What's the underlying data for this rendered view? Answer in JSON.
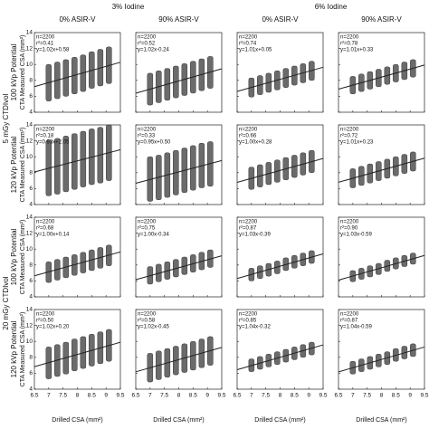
{
  "chart_data": {
    "type": "scatter",
    "group_titles": [
      "3% Iodine",
      "6% Iodine"
    ],
    "column_titles": [
      "0% ASIR-V",
      "90% ASIR-V",
      "0% ASIR-V",
      "90% ASIR-V"
    ],
    "dose_labels": [
      "5 mGy CTDIvol",
      "20 mGy CTDIvol"
    ],
    "row_titles": [
      "100 kVp Potential",
      "120 kVp Potential",
      "100 kVp Potential",
      "120 kVp Potential"
    ],
    "y_label": "CTA Measured CSA (mm²)",
    "x_label": "Drilled CSA (mm²)",
    "xlim": [
      6.5,
      9.5
    ],
    "xticks": [
      6.5,
      7,
      7.5,
      8,
      8.5,
      9,
      9.5
    ],
    "ylim": [
      4,
      14
    ],
    "yticks": [
      4,
      6,
      8,
      10,
      12,
      14
    ],
    "color": "#6b6b6b",
    "fit_color": "#222222",
    "x": [
      7.0,
      7.3,
      7.6,
      7.9,
      8.2,
      8.5,
      8.8,
      9.1
    ],
    "panels": [
      {
        "annotations": [
          "n=2200",
          "r²=0.41",
          "y=1.02x+0.58"
        ],
        "values": [
          7.7,
          8.0,
          8.3,
          8.6,
          8.9,
          9.3,
          9.6,
          9.9
        ],
        "spread": 2.3,
        "fit": [
          1.02,
          0.58
        ]
      },
      {
        "annotations": [
          "n=2200",
          "r²=0.52",
          "y=1.02x-0.24"
        ],
        "values": [
          6.9,
          7.2,
          7.5,
          7.8,
          8.1,
          8.4,
          8.7,
          9.0
        ],
        "spread": 2.0,
        "fit": [
          1.02,
          -0.24
        ]
      },
      {
        "annotations": [
          "n=2200",
          "r²=0.74",
          "y=1.01x+0.05"
        ],
        "values": [
          7.1,
          7.4,
          7.7,
          8.0,
          8.3,
          8.6,
          8.9,
          9.2
        ],
        "spread": 1.2,
        "fit": [
          1.01,
          0.05
        ]
      },
      {
        "annotations": [
          "n=2200",
          "r²=0.78",
          "y=1.01x+0.33"
        ],
        "values": [
          7.4,
          7.7,
          8.0,
          8.3,
          8.6,
          8.9,
          9.2,
          9.5
        ],
        "spread": 1.1,
        "fit": [
          1.01,
          0.33
        ]
      },
      {
        "annotations": [
          "n=2200",
          "r²=0.18",
          "y=0.93x+2.05"
        ],
        "values": [
          8.6,
          8.8,
          9.1,
          9.4,
          9.7,
          10.0,
          10.2,
          10.5
        ],
        "spread": 3.5,
        "fit": [
          0.93,
          2.05
        ]
      },
      {
        "annotations": [
          "n=2200",
          "r²=0.33",
          "y=0.95x+0.50"
        ],
        "values": [
          7.2,
          7.4,
          7.7,
          8.0,
          8.3,
          8.6,
          8.9,
          9.1
        ],
        "spread": 2.8,
        "fit": [
          0.95,
          0.5
        ]
      },
      {
        "annotations": [
          "n=2200",
          "r²=0.66",
          "y=1.00x+0.28"
        ],
        "values": [
          7.3,
          7.6,
          7.9,
          8.2,
          8.5,
          8.8,
          9.1,
          9.4
        ],
        "spread": 1.4,
        "fit": [
          1.0,
          0.28
        ]
      },
      {
        "annotations": [
          "n=2200",
          "r²=0.72",
          "y=1.01x+0.23"
        ],
        "values": [
          7.3,
          7.6,
          7.9,
          8.2,
          8.5,
          8.8,
          9.1,
          9.4
        ],
        "spread": 1.2,
        "fit": [
          1.01,
          0.23
        ]
      },
      {
        "annotations": [
          "n=2200",
          "r²=0.68",
          "y=1.00x+0.14"
        ],
        "values": [
          7.1,
          7.4,
          7.7,
          8.0,
          8.3,
          8.6,
          8.9,
          9.2
        ],
        "spread": 1.3,
        "fit": [
          1.0,
          0.14
        ]
      },
      {
        "annotations": [
          "n=2200",
          "r²=0.75",
          "y=1.00x-0.34"
        ],
        "values": [
          6.7,
          7.0,
          7.3,
          7.6,
          7.9,
          8.2,
          8.5,
          8.8
        ],
        "spread": 1.1,
        "fit": [
          1.0,
          -0.34
        ]
      },
      {
        "annotations": [
          "n=2200",
          "r²=0.87",
          "y=1.03x-0.39"
        ],
        "values": [
          6.8,
          7.1,
          7.4,
          7.7,
          8.1,
          8.4,
          8.7,
          9.0
        ],
        "spread": 0.8,
        "fit": [
          1.03,
          -0.39
        ]
      },
      {
        "annotations": [
          "n=2200",
          "r²=0.90",
          "y=1.03x-0.59"
        ],
        "values": [
          6.6,
          6.9,
          7.2,
          7.5,
          7.9,
          8.2,
          8.5,
          8.8
        ],
        "spread": 0.7,
        "fit": [
          1.03,
          -0.59
        ]
      },
      {
        "annotations": [
          "n=2200",
          "r²=0.50",
          "y=1.02x+0.20"
        ],
        "values": [
          7.3,
          7.6,
          7.9,
          8.3,
          8.6,
          8.9,
          9.2,
          9.5
        ],
        "spread": 2.0,
        "fit": [
          1.02,
          0.2
        ]
      },
      {
        "annotations": [
          "n=2200",
          "r²=0.58",
          "y=1.02x-0.45"
        ],
        "values": [
          6.7,
          7.0,
          7.3,
          7.6,
          7.9,
          8.2,
          8.5,
          8.8
        ],
        "spread": 1.8,
        "fit": [
          1.02,
          -0.45
        ]
      },
      {
        "annotations": [
          "n=2200",
          "r²=0.85",
          "y=1.04x-0.32"
        ],
        "values": [
          7.0,
          7.3,
          7.6,
          7.9,
          8.2,
          8.5,
          8.8,
          9.1
        ],
        "spread": 0.8,
        "fit": [
          1.04,
          -0.32
        ]
      },
      {
        "annotations": [
          "n=2200",
          "r²=0.87",
          "y=1.04x-0.59"
        ],
        "values": [
          6.7,
          7.0,
          7.3,
          7.6,
          7.9,
          8.3,
          8.6,
          8.9
        ],
        "spread": 0.8,
        "fit": [
          1.04,
          -0.59
        ]
      }
    ]
  }
}
